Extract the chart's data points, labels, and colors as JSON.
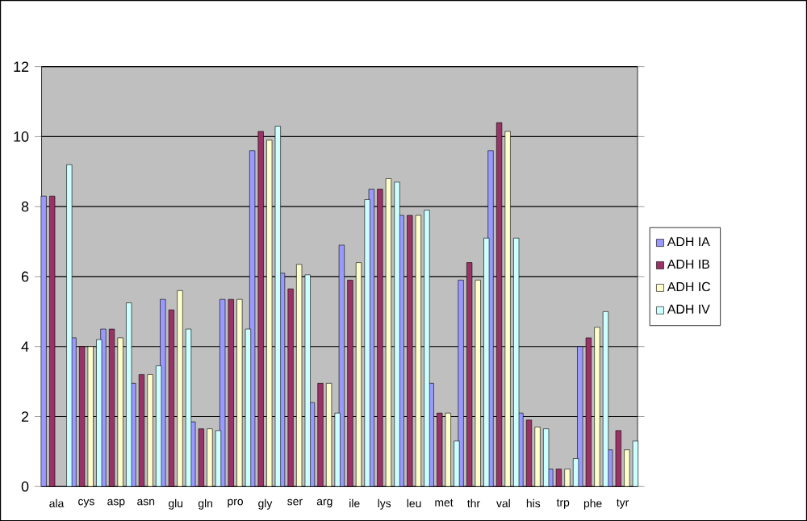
{
  "chart_data": {
    "type": "bar",
    "categories": [
      "ala",
      "cys",
      "asp",
      "asn",
      "glu",
      "gln",
      "pro",
      "gly",
      "ser",
      "arg",
      "ile",
      "lys",
      "leu",
      "met",
      "thr",
      "val",
      "his",
      "trp",
      "phe",
      "tyr"
    ],
    "series": [
      {
        "name": "ADH IA",
        "color": "#9999ff",
        "values": [
          8.3,
          4.25,
          4.5,
          2.95,
          5.35,
          1.85,
          5.35,
          9.6,
          6.1,
          2.4,
          6.9,
          8.5,
          7.75,
          2.95,
          5.9,
          9.6,
          2.1,
          0.5,
          4.0,
          1.05
        ]
      },
      {
        "name": "ADH IB",
        "color": "#993366",
        "values": [
          8.3,
          4.0,
          4.5,
          3.2,
          5.05,
          1.65,
          5.35,
          10.15,
          5.65,
          2.95,
          5.9,
          8.5,
          7.75,
          2.1,
          6.4,
          10.4,
          1.9,
          0.5,
          4.25,
          1.6
        ]
      },
      {
        "name": "ADH IC",
        "color": "#ffffcc",
        "values": [
          null,
          4.0,
          4.25,
          3.2,
          5.6,
          1.65,
          5.35,
          9.9,
          6.35,
          2.95,
          6.4,
          8.8,
          7.75,
          2.1,
          5.9,
          10.15,
          1.7,
          0.5,
          4.55,
          1.05
        ]
      },
      {
        "name": "ADH IV",
        "color": "#ccffff",
        "values": [
          9.2,
          4.2,
          5.25,
          3.45,
          4.5,
          1.6,
          4.5,
          10.3,
          6.05,
          2.1,
          8.2,
          8.7,
          7.9,
          1.3,
          7.1,
          7.1,
          1.65,
          0.8,
          5.0,
          1.3
        ]
      }
    ],
    "ylim": [
      0,
      12
    ],
    "yticks": [
      0,
      2,
      4,
      6,
      8,
      10,
      12
    ],
    "grid": "y",
    "legend": "right"
  }
}
